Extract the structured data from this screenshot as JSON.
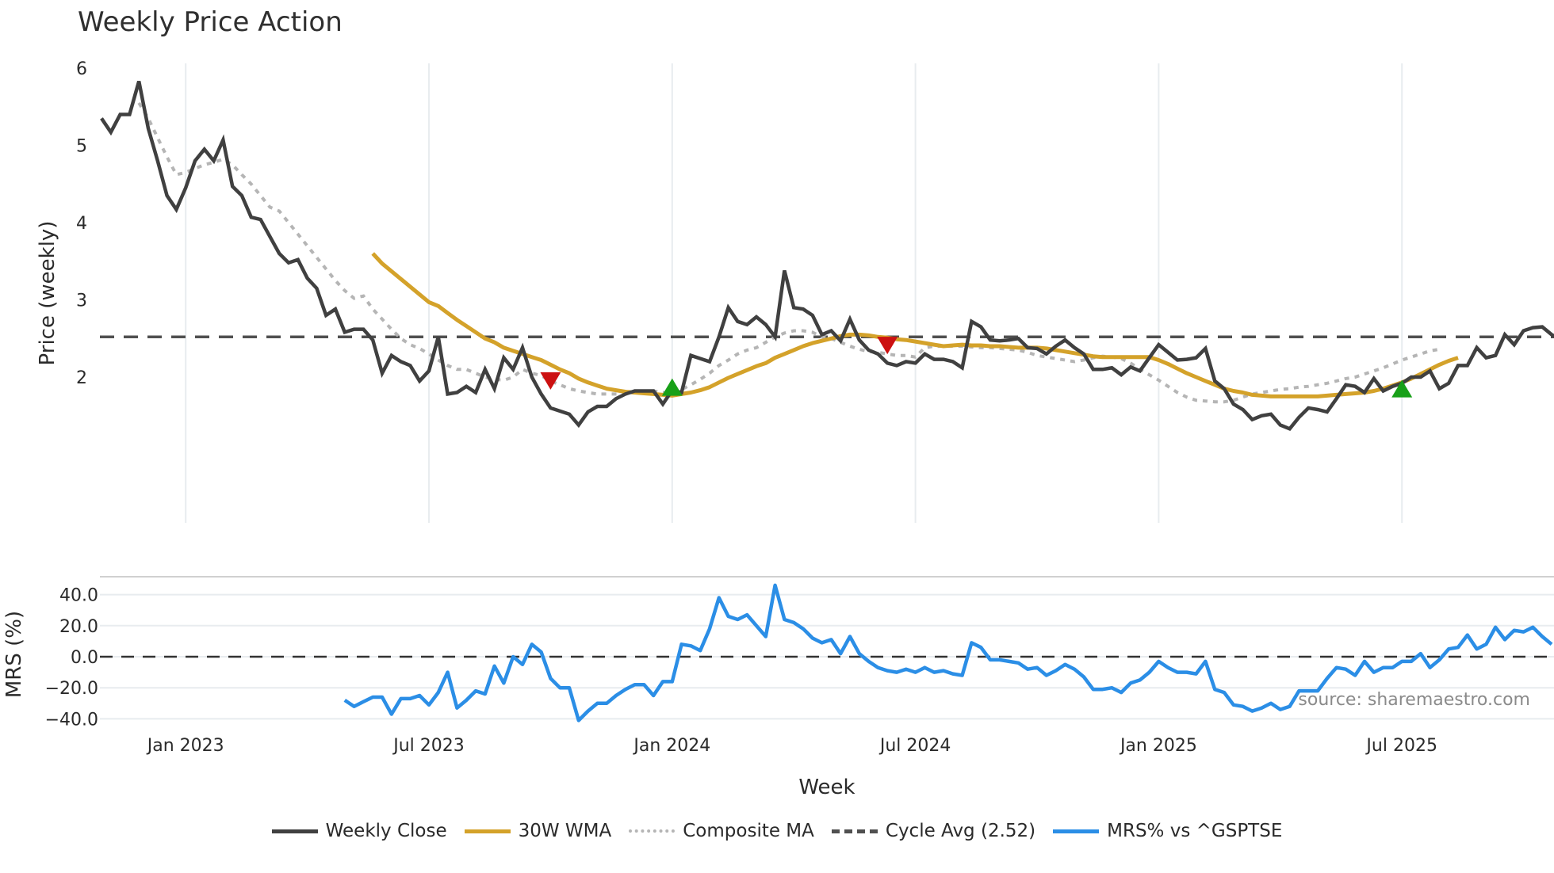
{
  "title": "Weekly Price Action",
  "colors": {
    "weekly_close": "#404040",
    "wma": "#d4a22a",
    "composite": "#b5b5b5",
    "cycle_avg": "#505050",
    "mrs": "#2b8ee6",
    "buy_marker": "#18a018",
    "sell_marker": "#cc1111",
    "grid": "#e8ecef"
  },
  "legend": [
    {
      "label": "Weekly Close",
      "style": "solid",
      "color": "#404040"
    },
    {
      "label": "30W WMA",
      "style": "solid",
      "color": "#d4a22a"
    },
    {
      "label": "Composite MA",
      "style": "dotted",
      "color": "#b5b5b5"
    },
    {
      "label": "Cycle Avg (2.52)",
      "style": "dashed",
      "color": "#505050"
    },
    {
      "label": "MRS% vs ^GSPTSE",
      "style": "solid",
      "color": "#2b8ee6"
    }
  ],
  "source": "source: sharemaestro.com",
  "chart_data": [
    {
      "type": "line",
      "title": "Weekly Price Action",
      "xlabel": "Week",
      "ylabel": "Price (weekly)",
      "ylim": [
        1.0,
        6.1
      ],
      "yticks": [
        2,
        3,
        4,
        5,
        6
      ],
      "x_ticks": [
        "Jan 2023",
        "Jul 2023",
        "Jan 2024",
        "Jul 2024",
        "Jan 2025",
        "Jul 2025"
      ],
      "x_tick_week_index": [
        9,
        35,
        61,
        87,
        113,
        139
      ],
      "grid": true,
      "legend_position": "bottom",
      "cycle_avg": 2.52,
      "series": [
        {
          "name": "Weekly Close",
          "start_index": 0,
          "values": [
            5.35,
            5.17,
            5.4,
            5.4,
            5.83,
            5.22,
            4.8,
            4.35,
            4.17,
            4.45,
            4.8,
            4.95,
            4.8,
            5.07,
            4.47,
            4.35,
            4.07,
            4.04,
            3.82,
            3.6,
            3.48,
            3.52,
            3.28,
            3.15,
            2.8,
            2.88,
            2.58,
            2.62,
            2.62,
            2.48,
            2.05,
            2.28,
            2.2,
            2.15,
            1.95,
            2.08,
            2.52,
            1.78,
            1.8,
            1.88,
            1.8,
            2.1,
            1.85,
            2.25,
            2.1,
            2.38,
            2.0,
            1.78,
            1.6,
            1.56,
            1.52,
            1.38,
            1.55,
            1.62,
            1.62,
            1.72,
            1.78,
            1.82,
            1.82,
            1.82,
            1.65,
            1.83,
            1.8,
            2.28,
            2.24,
            2.2,
            2.52,
            2.9,
            2.72,
            2.68,
            2.78,
            2.68,
            2.52,
            3.38,
            2.9,
            2.88,
            2.8,
            2.55,
            2.6,
            2.47,
            2.75,
            2.48,
            2.35,
            2.3,
            2.18,
            2.15,
            2.2,
            2.18,
            2.3,
            2.23,
            2.23,
            2.2,
            2.12,
            2.72,
            2.65,
            2.48,
            2.47,
            2.48,
            2.5,
            2.38,
            2.37,
            2.3,
            2.4,
            2.48,
            2.38,
            2.3,
            2.1,
            2.1,
            2.12,
            2.03,
            2.13,
            2.08,
            2.25,
            2.42,
            2.32,
            2.22,
            2.23,
            2.25,
            2.37,
            1.95,
            1.85,
            1.65,
            1.58,
            1.45,
            1.5,
            1.52,
            1.38,
            1.33,
            1.48,
            1.6,
            1.58,
            1.55,
            1.72,
            1.9,
            1.88,
            1.8,
            1.98,
            1.82,
            1.88,
            1.92,
            2.0,
            2.0,
            2.08,
            1.85,
            1.92,
            2.15,
            2.15,
            2.38,
            2.25,
            2.28,
            2.55,
            2.42,
            2.6,
            2.64,
            2.65,
            2.55,
            2.48
          ]
        },
        {
          "name": "30W WMA",
          "start_index": 29,
          "values": [
            3.6,
            3.47,
            3.37,
            3.27,
            3.17,
            3.07,
            2.97,
            2.92,
            2.83,
            2.74,
            2.66,
            2.58,
            2.5,
            2.45,
            2.38,
            2.34,
            2.3,
            2.26,
            2.22,
            2.16,
            2.1,
            2.05,
            1.98,
            1.93,
            1.89,
            1.85,
            1.83,
            1.81,
            1.8,
            1.79,
            1.78,
            1.77,
            1.76,
            1.78,
            1.8,
            1.83,
            1.87,
            1.93,
            1.99,
            2.04,
            2.09,
            2.14,
            2.18,
            2.25,
            2.3,
            2.35,
            2.4,
            2.44,
            2.47,
            2.5,
            2.53,
            2.55,
            2.55,
            2.54,
            2.52,
            2.51,
            2.49,
            2.48,
            2.46,
            2.44,
            2.42,
            2.4,
            2.41,
            2.42,
            2.41,
            2.41,
            2.4,
            2.4,
            2.39,
            2.38,
            2.38,
            2.38,
            2.37,
            2.35,
            2.33,
            2.31,
            2.29,
            2.27,
            2.26,
            2.26,
            2.26,
            2.26,
            2.26,
            2.26,
            2.22,
            2.17,
            2.11,
            2.05,
            2.0,
            1.95,
            1.9,
            1.85,
            1.82,
            1.8,
            1.77,
            1.76,
            1.75,
            1.75,
            1.75,
            1.75,
            1.75,
            1.75,
            1.76,
            1.77,
            1.78,
            1.79,
            1.8,
            1.82,
            1.85,
            1.89,
            1.93,
            1.98,
            2.04,
            2.1,
            2.16,
            2.21,
            2.25
          ]
        },
        {
          "name": "Composite MA",
          "start_index": 4,
          "values": [
            5.55,
            5.35,
            5.1,
            4.85,
            4.62,
            4.65,
            4.7,
            4.75,
            4.78,
            4.82,
            4.75,
            4.62,
            4.5,
            4.35,
            4.2,
            4.15,
            4.0,
            3.85,
            3.7,
            3.55,
            3.4,
            3.25,
            3.12,
            3.02,
            3.05,
            2.88,
            2.75,
            2.62,
            2.5,
            2.42,
            2.37,
            2.3,
            2.22,
            2.15,
            2.1,
            2.1,
            2.05,
            2.0,
            1.97,
            1.96,
            2.0,
            2.1,
            2.05,
            2.02,
            1.95,
            1.9,
            1.85,
            1.82,
            1.8,
            1.78,
            1.78,
            1.78,
            1.78,
            1.8,
            1.82,
            1.82,
            1.8,
            1.8,
            1.84,
            1.9,
            1.97,
            2.05,
            2.15,
            2.22,
            2.3,
            2.35,
            2.38,
            2.45,
            2.52,
            2.57,
            2.6,
            2.6,
            2.58,
            2.52,
            2.5,
            2.45,
            2.4,
            2.36,
            2.33,
            2.32,
            2.3,
            2.28,
            2.28,
            2.26,
            2.38,
            2.4,
            2.4,
            2.4,
            2.4,
            2.39,
            2.38,
            2.38,
            2.37,
            2.36,
            2.35,
            2.32,
            2.28,
            2.26,
            2.24,
            2.22,
            2.2,
            2.22,
            2.25,
            2.27,
            2.26,
            2.24,
            2.18,
            2.1,
            2.03,
            1.96,
            1.88,
            1.8,
            1.74,
            1.7,
            1.69,
            1.68,
            1.68,
            1.7,
            1.74,
            1.78,
            1.8,
            1.82,
            1.84,
            1.85,
            1.87,
            1.88,
            1.9,
            1.92,
            1.95,
            1.98,
            2.0,
            2.04,
            2.08,
            2.12,
            2.17,
            2.22,
            2.26,
            2.3,
            2.34,
            2.36
          ]
        },
        {
          "name": "Cycle Avg (2.52)",
          "constant": 2.52
        }
      ],
      "markers": [
        {
          "type": "sell",
          "shape": "triangle-down",
          "week_index": 48,
          "value": 1.97
        },
        {
          "type": "buy",
          "shape": "triangle-up",
          "week_index": 61,
          "value": 1.85
        },
        {
          "type": "sell",
          "shape": "triangle-down",
          "week_index": 84,
          "value": 2.43
        },
        {
          "type": "buy",
          "shape": "triangle-up",
          "week_index": 139,
          "value": 1.83
        }
      ]
    },
    {
      "type": "line",
      "title": "",
      "xlabel": "Week",
      "ylabel": "MRS (%)",
      "ylim": [
        -45,
        52
      ],
      "yticks": [
        40.0,
        20.0,
        0.0,
        -20.0,
        -40.0
      ],
      "ytick_labels": [
        "40.0",
        "20.0",
        "0.0",
        "−20.0",
        "−40.0"
      ],
      "x_ticks": [
        "Jan 2023",
        "Jul 2023",
        "Jan 2024",
        "Jul 2024",
        "Jan 2025",
        "Jul 2025"
      ],
      "zero_line": true,
      "series": [
        {
          "name": "MRS% vs ^GSPTSE",
          "start_index": 26,
          "values": [
            -28,
            -32,
            -29,
            -26,
            -26,
            -37,
            -27,
            -27,
            -25,
            -31,
            -23,
            -10,
            -33,
            -28,
            -22,
            -24,
            -6,
            -17,
            0,
            -5,
            8,
            3,
            -14,
            -20,
            -20,
            -41,
            -35,
            -30,
            -30,
            -25,
            -21,
            -18,
            -18,
            -25,
            -16,
            -16,
            8,
            7,
            4,
            18,
            38,
            26,
            24,
            27,
            20,
            13,
            46,
            24,
            22,
            18,
            12,
            9,
            11,
            2,
            13,
            2,
            -3,
            -7,
            -9,
            -10,
            -8,
            -10,
            -7,
            -10,
            -9,
            -11,
            -12,
            9,
            6,
            -2,
            -2,
            -3,
            -4,
            -8,
            -7,
            -12,
            -9,
            -5,
            -8,
            -13,
            -21,
            -21,
            -20,
            -23,
            -17,
            -15,
            -10,
            -3,
            -7,
            -10,
            -10,
            -11,
            -3,
            -21,
            -23,
            -31,
            -32,
            -35,
            -33,
            -30,
            -34,
            -32,
            -22,
            -22,
            -22,
            -14,
            -7,
            -8,
            -12,
            -3,
            -10,
            -7,
            -7,
            -3,
            -3,
            2,
            -7,
            -2,
            5,
            6,
            14,
            5,
            8,
            19,
            11,
            17,
            16,
            19,
            13,
            8
          ]
        }
      ]
    }
  ]
}
